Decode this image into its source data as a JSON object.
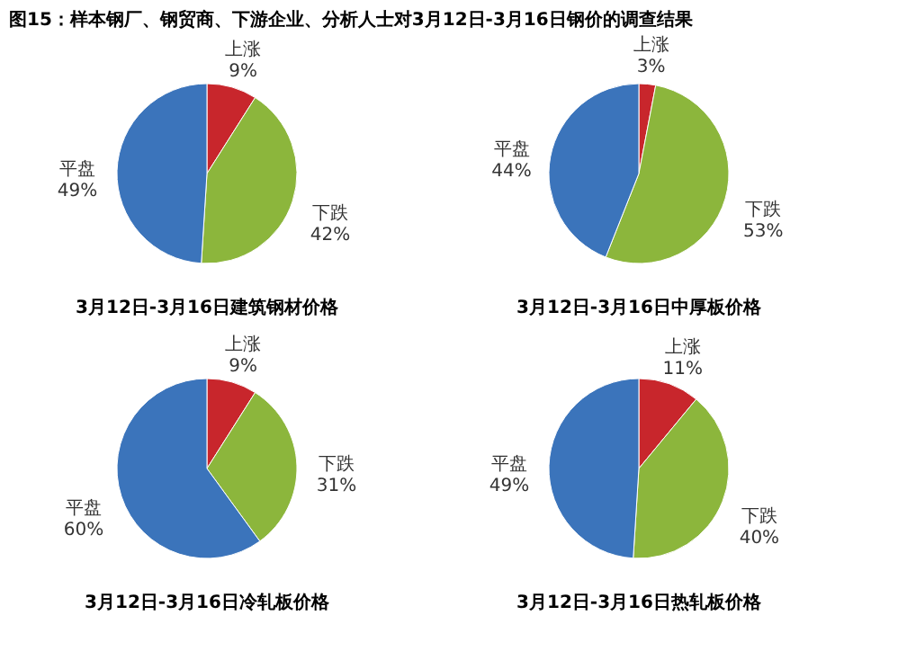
{
  "chart_data": [
    {
      "type": "pie",
      "title": "图15：样本钢厂、钢贸商、下游企业、分析人士对3月12日-3月16日钢价的调查结果",
      "xlabel": "3月12日-3月16日建筑钢材价格",
      "categories": [
        "上涨",
        "下跌",
        "平盘"
      ],
      "values": [
        9,
        42,
        49
      ],
      "value_labels": [
        "9%",
        "42%",
        "49%"
      ],
      "colors": [
        "#c8262c",
        "#8cb63c",
        "#3b74bb"
      ],
      "legend": false
    },
    {
      "type": "pie",
      "xlabel": "3月12日-3月16日中厚板价格",
      "categories": [
        "上涨",
        "下跌",
        "平盘"
      ],
      "values": [
        3,
        53,
        44
      ],
      "value_labels": [
        "3%",
        "53%",
        "44%"
      ],
      "colors": [
        "#c8262c",
        "#8cb63c",
        "#3b74bb"
      ],
      "legend": false
    },
    {
      "type": "pie",
      "xlabel": "3月12日-3月16日冷轧板价格",
      "categories": [
        "上涨",
        "下跌",
        "平盘"
      ],
      "values": [
        9,
        31,
        60
      ],
      "value_labels": [
        "9%",
        "31%",
        "60%"
      ],
      "colors": [
        "#c8262c",
        "#8cb63c",
        "#3b74bb"
      ],
      "legend": false
    },
    {
      "type": "pie",
      "xlabel": "3月12日-3月16日热轧板价格",
      "categories": [
        "上涨",
        "下跌",
        "平盘"
      ],
      "values": [
        11,
        40,
        49
      ],
      "value_labels": [
        "11%",
        "40%",
        "49%"
      ],
      "colors": [
        "#c8262c",
        "#8cb63c",
        "#3b74bb"
      ],
      "legend": false
    }
  ]
}
